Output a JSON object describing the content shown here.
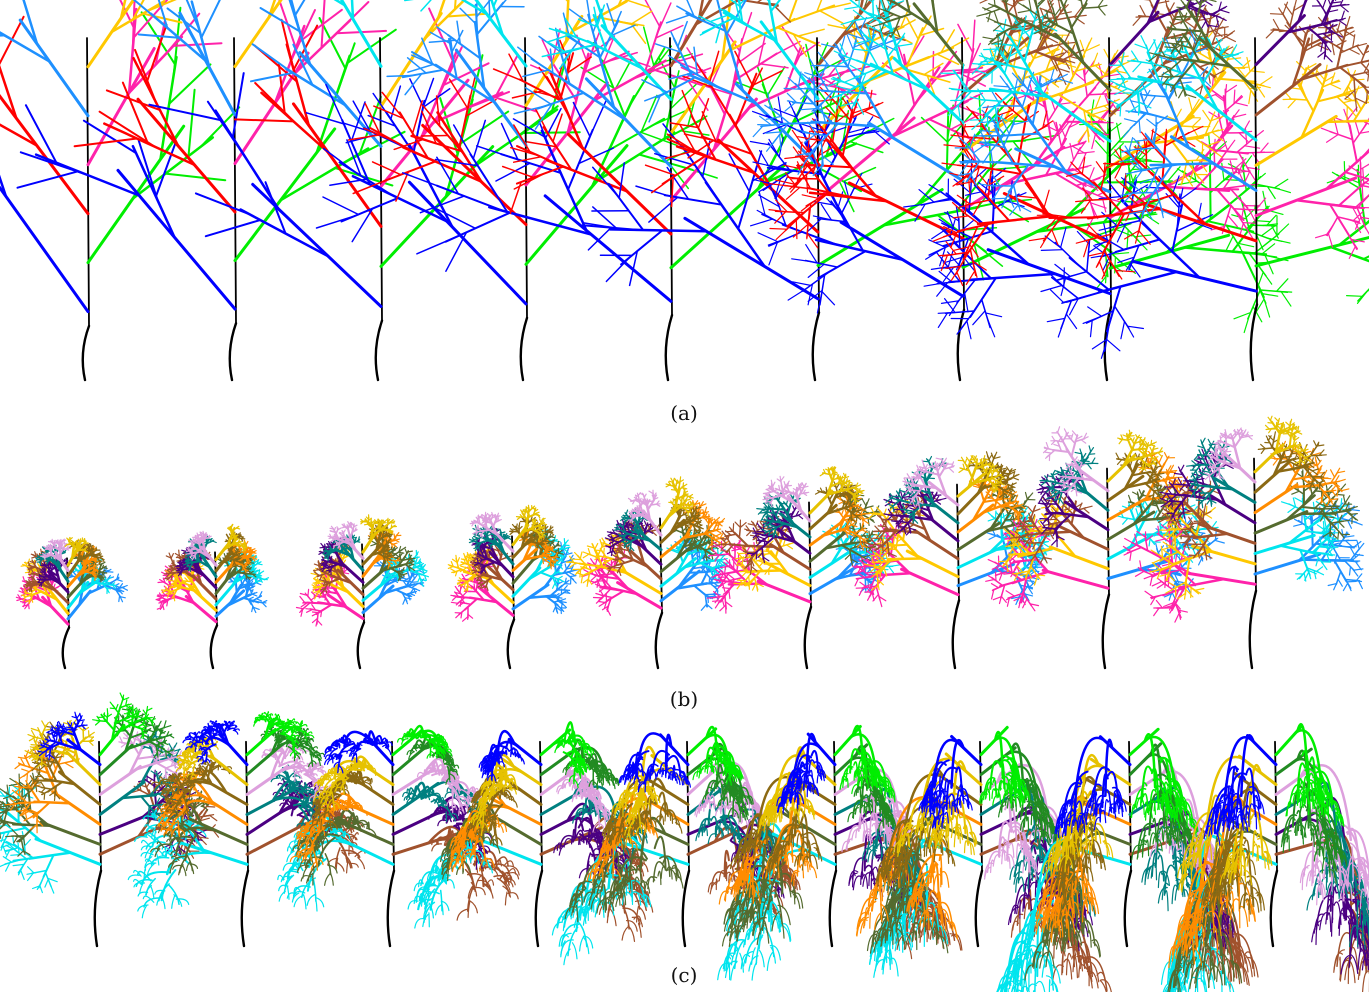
{
  "figure": {
    "rows": [
      {
        "caption": "(a)",
        "trees": [
          {
            "branch_levels": 2,
            "spread": 0.38,
            "droop": 0.0
          },
          {
            "branch_levels": 2,
            "spread": 0.4,
            "droop": 0.0
          },
          {
            "branch_levels": 2,
            "spread": 0.45,
            "droop": 0.0
          },
          {
            "branch_levels": 3,
            "spread": 0.55,
            "droop": 0.0
          },
          {
            "branch_levels": 3,
            "spread": 0.6,
            "droop": 0.0
          },
          {
            "branch_levels": 3,
            "spread": 0.7,
            "droop": 0.0
          },
          {
            "branch_levels": 4,
            "spread": 0.85,
            "droop": 0.0
          },
          {
            "branch_levels": 4,
            "spread": 1.0,
            "droop": 0.0
          },
          {
            "branch_levels": 4,
            "spread": 1.05,
            "droop": 0.0
          }
        ]
      },
      {
        "caption": "(b)",
        "trees": [
          {
            "branch_levels": 4,
            "spread": 0.5,
            "droop": 0.0
          },
          {
            "branch_levels": 4,
            "spread": 0.55,
            "droop": 0.0
          },
          {
            "branch_levels": 4,
            "spread": 0.6,
            "droop": 0.0
          },
          {
            "branch_levels": 4,
            "spread": 0.65,
            "droop": 0.0
          },
          {
            "branch_levels": 4,
            "spread": 0.75,
            "droop": 0.0
          },
          {
            "branch_levels": 4,
            "spread": 0.85,
            "droop": 0.0
          },
          {
            "branch_levels": 4,
            "spread": 0.95,
            "droop": 0.0
          },
          {
            "branch_levels": 4,
            "spread": 1.05,
            "droop": 0.0
          },
          {
            "branch_levels": 4,
            "spread": 1.1,
            "droop": 0.0
          }
        ]
      },
      {
        "caption": "(c)",
        "trees": [
          {
            "branch_levels": 4,
            "spread": 0.95,
            "droop": 0.0
          },
          {
            "branch_levels": 4,
            "spread": 0.95,
            "droop": 0.1
          },
          {
            "branch_levels": 4,
            "spread": 0.95,
            "droop": 0.25
          },
          {
            "branch_levels": 4,
            "spread": 0.95,
            "droop": 0.4
          },
          {
            "branch_levels": 4,
            "spread": 0.95,
            "droop": 0.55
          },
          {
            "branch_levels": 4,
            "spread": 0.95,
            "droop": 0.7
          },
          {
            "branch_levels": 4,
            "spread": 0.95,
            "droop": 0.82
          },
          {
            "branch_levels": 4,
            "spread": 1.0,
            "droop": 0.92
          },
          {
            "branch_levels": 4,
            "spread": 1.0,
            "droop": 1.0
          }
        ]
      }
    ],
    "palette": [
      "#0000ff",
      "#00ee00",
      "#ff0000",
      "#ff22aa",
      "#1e90ff",
      "#ffc800",
      "#00e5ee",
      "#a0522d",
      "#556b2f",
      "#4b0082",
      "#ff8c00",
      "#008080",
      "#8b6914",
      "#dda0dd",
      "#e6c200",
      "#228b22"
    ],
    "trunk_color": "#000000"
  }
}
